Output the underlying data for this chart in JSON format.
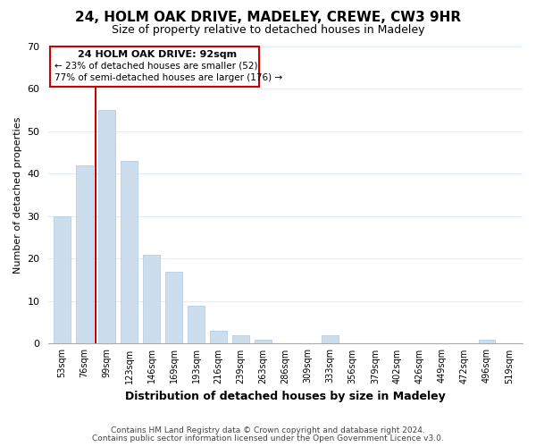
{
  "title": "24, HOLM OAK DRIVE, MADELEY, CREWE, CW3 9HR",
  "subtitle": "Size of property relative to detached houses in Madeley",
  "xlabel": "Distribution of detached houses by size in Madeley",
  "ylabel": "Number of detached properties",
  "bar_labels": [
    "53sqm",
    "76sqm",
    "99sqm",
    "123sqm",
    "146sqm",
    "169sqm",
    "193sqm",
    "216sqm",
    "239sqm",
    "263sqm",
    "286sqm",
    "309sqm",
    "333sqm",
    "356sqm",
    "379sqm",
    "402sqm",
    "426sqm",
    "449sqm",
    "472sqm",
    "496sqm",
    "519sqm"
  ],
  "bar_values": [
    30,
    42,
    55,
    43,
    21,
    17,
    9,
    3,
    2,
    1,
    0,
    0,
    2,
    0,
    0,
    0,
    0,
    0,
    0,
    1,
    0
  ],
  "bar_color": "#ccdeed",
  "bar_edge_color": "#aac8e0",
  "highlight_color": "#cc0000",
  "highlight_index": 2,
  "ylim": [
    0,
    70
  ],
  "yticks": [
    0,
    10,
    20,
    30,
    40,
    50,
    60,
    70
  ],
  "annotation_title": "24 HOLM OAK DRIVE: 92sqm",
  "annotation_line1": "← 23% of detached houses are smaller (52)",
  "annotation_line2": "77% of semi-detached houses are larger (176) →",
  "annotation_box_color": "#ffffff",
  "annotation_box_edge": "#cc0000",
  "footer_line1": "Contains HM Land Registry data © Crown copyright and database right 2024.",
  "footer_line2": "Contains public sector information licensed under the Open Government Licence v3.0.",
  "bg_color": "#ffffff",
  "plot_bg_color": "#ffffff",
  "grid_color": "#ddeeff"
}
